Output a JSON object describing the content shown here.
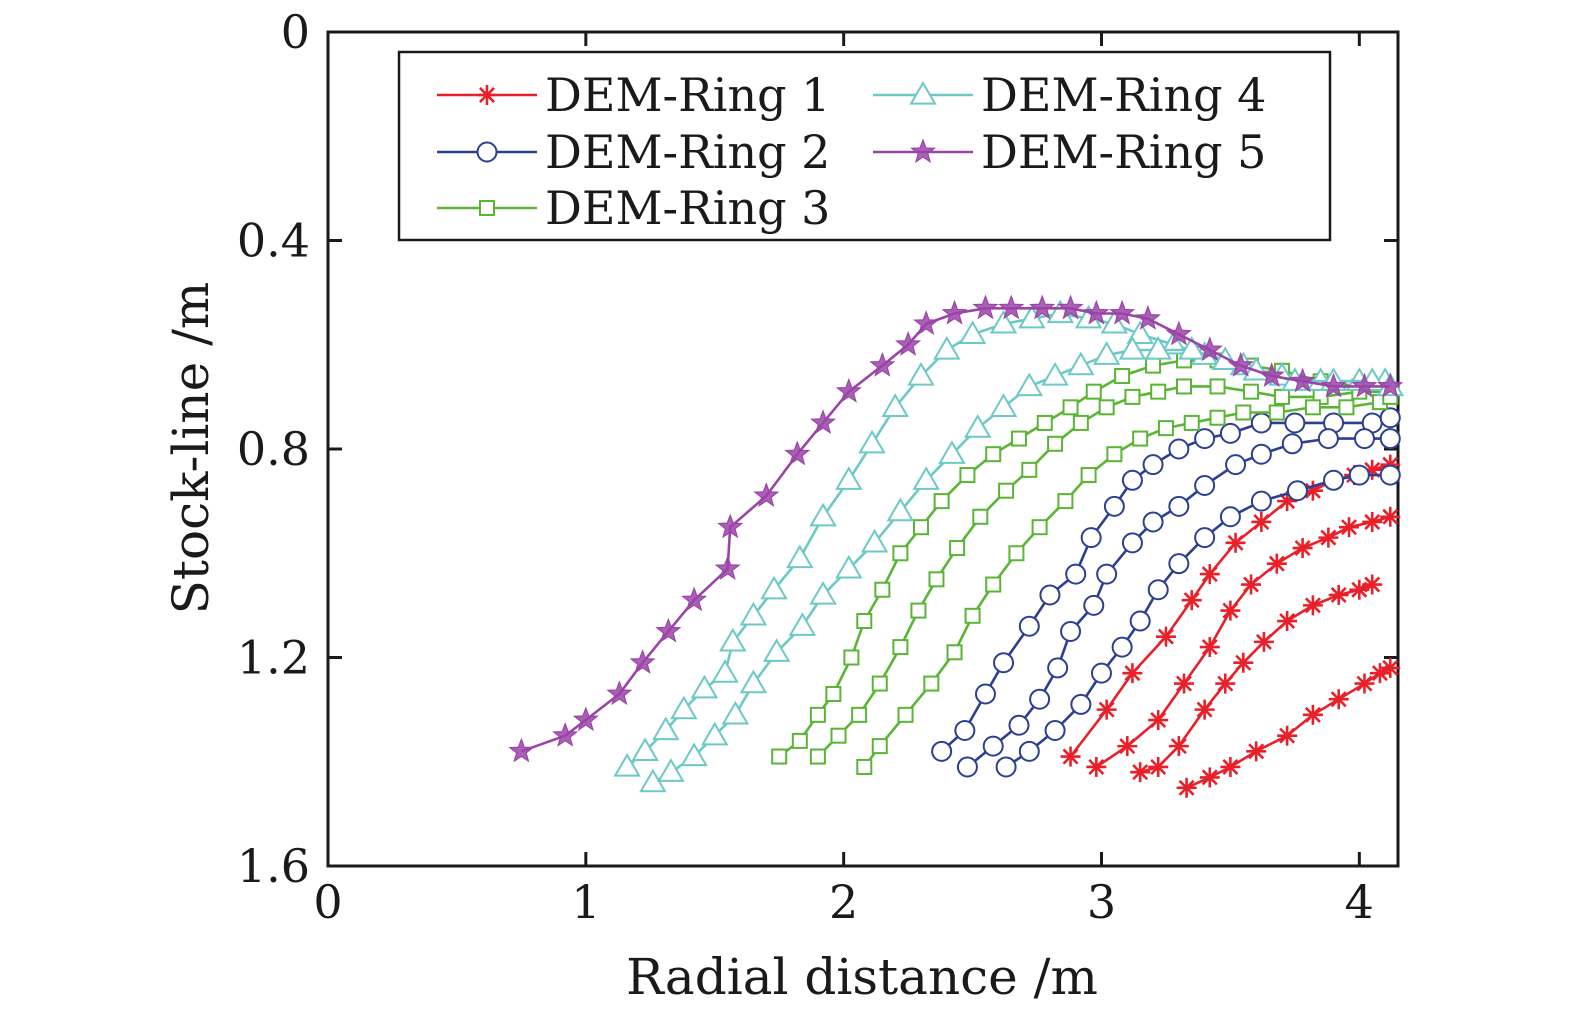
{
  "chart_data": {
    "type": "line",
    "xlabel": "Radial distance /m",
    "ylabel": "Stock-line /m",
    "xlim": [
      0,
      4.15
    ],
    "ylim": [
      0,
      1.6
    ],
    "y_inverted": true,
    "x_ticks": [
      0,
      1,
      2,
      3,
      4
    ],
    "y_ticks": [
      0,
      0.4,
      0.8,
      1.2,
      1.6
    ],
    "x_tick_labels": [
      "0",
      "1",
      "2",
      "3",
      "4"
    ],
    "y_tick_labels": [
      "0",
      "0.4",
      "0.8",
      "1.2",
      "1.6"
    ],
    "grid": false,
    "legend": {
      "position": "top",
      "columns": 2,
      "entries": [
        "DEM-Ring 1",
        "DEM-Ring 2",
        "DEM-Ring 3",
        "DEM-Ring 4",
        "DEM-Ring 5"
      ]
    },
    "series": [
      {
        "name": "DEM-Ring 1",
        "color": "#e8202a",
        "marker": "asterisk",
        "curves": [
          [
            [
              2.88,
              1.39
            ],
            [
              3.02,
              1.3
            ],
            [
              3.12,
              1.23
            ],
            [
              3.25,
              1.16
            ],
            [
              3.35,
              1.09
            ],
            [
              3.42,
              1.04
            ],
            [
              3.52,
              0.98
            ],
            [
              3.62,
              0.94
            ],
            [
              3.72,
              0.9
            ],
            [
              3.82,
              0.88
            ],
            [
              3.9,
              0.86
            ],
            [
              3.98,
              0.85
            ],
            [
              4.05,
              0.84
            ],
            [
              4.12,
              0.83
            ]
          ],
          [
            [
              2.98,
              1.41
            ],
            [
              3.1,
              1.37
            ],
            [
              3.22,
              1.32
            ],
            [
              3.32,
              1.25
            ],
            [
              3.42,
              1.18
            ],
            [
              3.5,
              1.11
            ],
            [
              3.58,
              1.06
            ],
            [
              3.68,
              1.02
            ],
            [
              3.78,
              0.99
            ],
            [
              3.88,
              0.97
            ],
            [
              3.96,
              0.95
            ],
            [
              4.05,
              0.94
            ],
            [
              4.12,
              0.93
            ]
          ],
          [
            [
              3.15,
              1.42
            ],
            [
              3.22,
              1.41
            ],
            [
              3.3,
              1.37
            ],
            [
              3.4,
              1.3
            ],
            [
              3.48,
              1.25
            ],
            [
              3.55,
              1.21
            ],
            [
              3.63,
              1.17
            ],
            [
              3.72,
              1.13
            ],
            [
              3.82,
              1.1
            ],
            [
              3.92,
              1.08
            ],
            [
              4.0,
              1.07
            ],
            [
              4.05,
              1.06
            ]
          ],
          [
            [
              3.33,
              1.45
            ],
            [
              3.42,
              1.43
            ],
            [
              3.5,
              1.41
            ],
            [
              3.6,
              1.38
            ],
            [
              3.72,
              1.35
            ],
            [
              3.82,
              1.31
            ],
            [
              3.92,
              1.28
            ],
            [
              4.02,
              1.25
            ],
            [
              4.08,
              1.23
            ],
            [
              4.12,
              1.22
            ]
          ]
        ]
      },
      {
        "name": "DEM-Ring 2",
        "color": "#2b3f93",
        "marker": "circle",
        "curves": [
          [
            [
              2.38,
              1.38
            ],
            [
              2.47,
              1.34
            ],
            [
              2.55,
              1.27
            ],
            [
              2.62,
              1.21
            ],
            [
              2.72,
              1.14
            ],
            [
              2.8,
              1.08
            ],
            [
              2.9,
              1.04
            ],
            [
              2.96,
              0.97
            ],
            [
              3.05,
              0.91
            ],
            [
              3.12,
              0.86
            ],
            [
              3.2,
              0.83
            ],
            [
              3.3,
              0.8
            ],
            [
              3.4,
              0.78
            ],
            [
              3.5,
              0.77
            ],
            [
              3.62,
              0.75
            ],
            [
              3.75,
              0.75
            ],
            [
              3.9,
              0.75
            ],
            [
              4.05,
              0.75
            ],
            [
              4.12,
              0.74
            ]
          ],
          [
            [
              2.48,
              1.41
            ],
            [
              2.58,
              1.37
            ],
            [
              2.68,
              1.33
            ],
            [
              2.76,
              1.28
            ],
            [
              2.83,
              1.22
            ],
            [
              2.88,
              1.15
            ],
            [
              2.97,
              1.1
            ],
            [
              3.02,
              1.04
            ],
            [
              3.12,
              0.98
            ],
            [
              3.2,
              0.94
            ],
            [
              3.3,
              0.91
            ],
            [
              3.4,
              0.87
            ],
            [
              3.52,
              0.83
            ],
            [
              3.62,
              0.81
            ],
            [
              3.74,
              0.79
            ],
            [
              3.88,
              0.78
            ],
            [
              4.02,
              0.78
            ],
            [
              4.12,
              0.78
            ]
          ],
          [
            [
              2.63,
              1.41
            ],
            [
              2.72,
              1.38
            ],
            [
              2.82,
              1.34
            ],
            [
              2.92,
              1.29
            ],
            [
              3.0,
              1.23
            ],
            [
              3.08,
              1.18
            ],
            [
              3.15,
              1.13
            ],
            [
              3.22,
              1.07
            ],
            [
              3.3,
              1.02
            ],
            [
              3.4,
              0.97
            ],
            [
              3.5,
              0.93
            ],
            [
              3.62,
              0.9
            ],
            [
              3.76,
              0.88
            ],
            [
              3.9,
              0.86
            ],
            [
              4.0,
              0.85
            ],
            [
              4.12,
              0.85
            ]
          ]
        ]
      },
      {
        "name": "DEM-Ring 3",
        "color": "#5ab535",
        "marker": "square",
        "curves": [
          [
            [
              1.75,
              1.39
            ],
            [
              1.83,
              1.36
            ],
            [
              1.9,
              1.31
            ],
            [
              1.96,
              1.27
            ],
            [
              2.03,
              1.2
            ],
            [
              2.08,
              1.13
            ],
            [
              2.15,
              1.07
            ],
            [
              2.22,
              1.0
            ],
            [
              2.3,
              0.95
            ],
            [
              2.38,
              0.9
            ],
            [
              2.48,
              0.85
            ],
            [
              2.58,
              0.81
            ],
            [
              2.68,
              0.78
            ],
            [
              2.78,
              0.75
            ],
            [
              2.88,
              0.72
            ],
            [
              2.97,
              0.69
            ],
            [
              3.08,
              0.66
            ],
            [
              3.2,
              0.64
            ],
            [
              3.32,
              0.63
            ],
            [
              3.45,
              0.63
            ],
            [
              3.58,
              0.64
            ],
            [
              3.7,
              0.65
            ],
            [
              3.85,
              0.67
            ],
            [
              4.0,
              0.68
            ],
            [
              4.12,
              0.69
            ]
          ],
          [
            [
              1.9,
              1.39
            ],
            [
              1.98,
              1.35
            ],
            [
              2.06,
              1.31
            ],
            [
              2.14,
              1.25
            ],
            [
              2.22,
              1.18
            ],
            [
              2.29,
              1.11
            ],
            [
              2.36,
              1.05
            ],
            [
              2.44,
              0.99
            ],
            [
              2.53,
              0.93
            ],
            [
              2.63,
              0.88
            ],
            [
              2.72,
              0.84
            ],
            [
              2.82,
              0.79
            ],
            [
              2.92,
              0.75
            ],
            [
              3.02,
              0.72
            ],
            [
              3.12,
              0.7
            ],
            [
              3.22,
              0.69
            ],
            [
              3.32,
              0.68
            ],
            [
              3.45,
              0.68
            ],
            [
              3.58,
              0.69
            ],
            [
              3.7,
              0.7
            ],
            [
              3.85,
              0.7
            ],
            [
              4.0,
              0.69
            ],
            [
              4.12,
              0.69
            ]
          ],
          [
            [
              2.08,
              1.41
            ],
            [
              2.14,
              1.37
            ],
            [
              2.24,
              1.31
            ],
            [
              2.34,
              1.25
            ],
            [
              2.43,
              1.19
            ],
            [
              2.5,
              1.12
            ],
            [
              2.58,
              1.06
            ],
            [
              2.67,
              1.0
            ],
            [
              2.76,
              0.95
            ],
            [
              2.86,
              0.9
            ],
            [
              2.95,
              0.85
            ],
            [
              3.05,
              0.81
            ],
            [
              3.15,
              0.78
            ],
            [
              3.25,
              0.76
            ],
            [
              3.35,
              0.75
            ],
            [
              3.45,
              0.74
            ],
            [
              3.55,
              0.73
            ],
            [
              3.68,
              0.73
            ],
            [
              3.82,
              0.72
            ],
            [
              3.95,
              0.72
            ],
            [
              4.08,
              0.71
            ],
            [
              4.12,
              0.7
            ]
          ]
        ]
      },
      {
        "name": "DEM-Ring 4",
        "color": "#6cc9c5",
        "marker": "triangle",
        "curves": [
          [
            [
              1.16,
              1.41
            ],
            [
              1.23,
              1.38
            ],
            [
              1.31,
              1.34
            ],
            [
              1.38,
              1.3
            ],
            [
              1.46,
              1.26
            ],
            [
              1.54,
              1.23
            ],
            [
              1.57,
              1.17
            ],
            [
              1.65,
              1.12
            ],
            [
              1.73,
              1.07
            ],
            [
              1.83,
              1.01
            ],
            [
              1.92,
              0.93
            ],
            [
              2.02,
              0.86
            ],
            [
              2.11,
              0.79
            ],
            [
              2.2,
              0.72
            ],
            [
              2.3,
              0.66
            ],
            [
              2.4,
              0.61
            ],
            [
              2.5,
              0.58
            ],
            [
              2.62,
              0.56
            ],
            [
              2.73,
              0.55
            ],
            [
              2.84,
              0.54
            ],
            [
              2.95,
              0.55
            ],
            [
              3.05,
              0.56
            ],
            [
              3.15,
              0.58
            ],
            [
              3.28,
              0.6
            ],
            [
              3.4,
              0.62
            ],
            [
              3.55,
              0.64
            ],
            [
              3.7,
              0.66
            ],
            [
              3.85,
              0.67
            ],
            [
              4.0,
              0.67
            ],
            [
              4.1,
              0.67
            ]
          ],
          [
            [
              1.26,
              1.44
            ],
            [
              1.33,
              1.42
            ],
            [
              1.42,
              1.39
            ],
            [
              1.5,
              1.35
            ],
            [
              1.58,
              1.31
            ],
            [
              1.65,
              1.25
            ],
            [
              1.74,
              1.19
            ],
            [
              1.84,
              1.14
            ],
            [
              1.92,
              1.08
            ],
            [
              2.02,
              1.03
            ],
            [
              2.12,
              0.98
            ],
            [
              2.22,
              0.92
            ],
            [
              2.32,
              0.86
            ],
            [
              2.42,
              0.81
            ],
            [
              2.52,
              0.76
            ],
            [
              2.62,
              0.72
            ],
            [
              2.72,
              0.68
            ],
            [
              2.82,
              0.66
            ],
            [
              2.92,
              0.64
            ],
            [
              3.02,
              0.62
            ],
            [
              3.12,
              0.61
            ],
            [
              3.22,
              0.61
            ],
            [
              3.35,
              0.61
            ],
            [
              3.48,
              0.63
            ],
            [
              3.6,
              0.65
            ],
            [
              3.75,
              0.67
            ],
            [
              3.9,
              0.67
            ],
            [
              4.05,
              0.67
            ],
            [
              4.12,
              0.68
            ]
          ]
        ]
      },
      {
        "name": "DEM-Ring 5",
        "color": "#9b44a8",
        "marker": "star",
        "curves": [
          [
            [
              0.75,
              1.38
            ],
            [
              0.92,
              1.35
            ],
            [
              1.0,
              1.32
            ],
            [
              1.13,
              1.27
            ],
            [
              1.22,
              1.21
            ],
            [
              1.32,
              1.15
            ],
            [
              1.42,
              1.09
            ],
            [
              1.55,
              1.03
            ],
            [
              1.56,
              0.95
            ],
            [
              1.7,
              0.89
            ],
            [
              1.82,
              0.81
            ],
            [
              1.92,
              0.75
            ],
            [
              2.02,
              0.69
            ],
            [
              2.15,
              0.64
            ],
            [
              2.25,
              0.6
            ],
            [
              2.32,
              0.56
            ],
            [
              2.43,
              0.54
            ],
            [
              2.55,
              0.53
            ],
            [
              2.65,
              0.53
            ],
            [
              2.77,
              0.53
            ],
            [
              2.88,
              0.53
            ],
            [
              2.98,
              0.54
            ],
            [
              3.08,
              0.54
            ],
            [
              3.18,
              0.55
            ],
            [
              3.3,
              0.58
            ],
            [
              3.42,
              0.61
            ],
            [
              3.54,
              0.64
            ],
            [
              3.66,
              0.66
            ],
            [
              3.78,
              0.67
            ],
            [
              3.9,
              0.68
            ],
            [
              4.02,
              0.68
            ],
            [
              4.12,
              0.68
            ]
          ]
        ]
      }
    ]
  }
}
